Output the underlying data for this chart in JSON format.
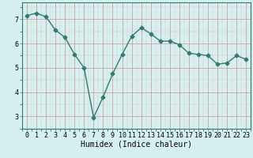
{
  "x": [
    0,
    1,
    2,
    3,
    4,
    5,
    6,
    7,
    8,
    9,
    10,
    11,
    12,
    13,
    14,
    15,
    16,
    17,
    18,
    19,
    20,
    21,
    22,
    23
  ],
  "y": [
    7.15,
    7.25,
    7.1,
    6.55,
    6.25,
    5.55,
    5.0,
    2.95,
    3.8,
    4.75,
    5.55,
    6.3,
    6.65,
    6.4,
    6.1,
    6.1,
    5.95,
    5.6,
    5.55,
    5.5,
    5.15,
    5.2,
    5.5,
    5.35
  ],
  "line_color": "#2e7d6e",
  "marker": "D",
  "marker_size": 2.5,
  "bg_color": "#d6f0f0",
  "xlabel": "Humidex (Indice chaleur)",
  "xlabel_fontsize": 7,
  "tick_fontsize": 6,
  "ylim": [
    2.5,
    7.7
  ],
  "yticks": [
    3,
    4,
    5,
    6,
    7
  ],
  "xlim": [
    -0.5,
    23.5
  ],
  "xticks": [
    0,
    1,
    2,
    3,
    4,
    5,
    6,
    7,
    8,
    9,
    10,
    11,
    12,
    13,
    14,
    15,
    16,
    17,
    18,
    19,
    20,
    21,
    22,
    23
  ],
  "line_width": 1.0,
  "grid_major_color": "#d09090",
  "grid_minor_color": "#e8c0c0",
  "spine_color": "#2e7d6e"
}
